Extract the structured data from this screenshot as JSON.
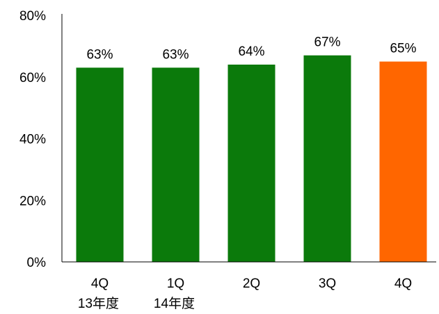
{
  "chart_data": {
    "type": "bar",
    "categories": [
      "4Q",
      "1Q",
      "2Q",
      "3Q",
      "4Q"
    ],
    "category_sublabels": [
      "13年度",
      "14年度",
      "",
      "",
      ""
    ],
    "values": [
      63,
      63,
      64,
      67,
      65
    ],
    "value_labels": [
      "63%",
      "63%",
      "64%",
      "67%",
      "65%"
    ],
    "ylim": [
      0,
      80
    ],
    "yticks": [
      0,
      20,
      40,
      60,
      80
    ],
    "ytick_labels": [
      "0%",
      "20%",
      "40%",
      "60%",
      "80%"
    ],
    "bar_colors": [
      "#0b7a0b",
      "#0b7a0b",
      "#0b7a0b",
      "#0b7a0b",
      "#ff6600"
    ],
    "grid": false,
    "legend": "none"
  }
}
